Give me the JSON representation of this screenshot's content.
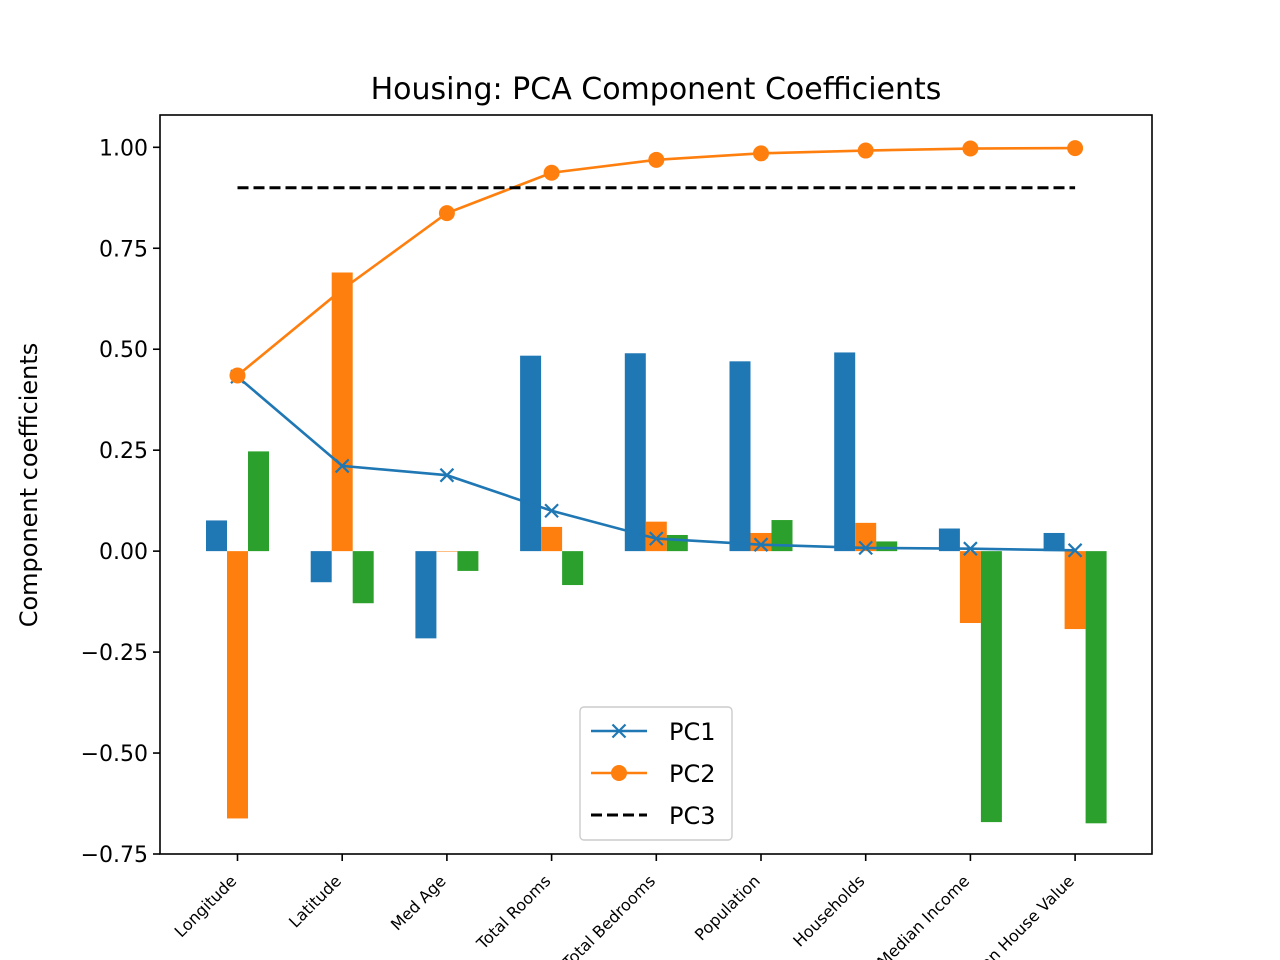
{
  "chart_data": {
    "type": "bar",
    "title": "Housing: PCA Component Coefficients",
    "xlabel": "",
    "ylabel": "Component coefficients",
    "ylim": [
      -0.75,
      1.08
    ],
    "yticks": [
      -0.75,
      -0.5,
      -0.25,
      0.0,
      0.25,
      0.5,
      0.75,
      1.0
    ],
    "ytick_labels": [
      "−0.75",
      "−0.50",
      "−0.25",
      "0.00",
      "0.25",
      "0.50",
      "0.75",
      "1.00"
    ],
    "categories": [
      "Longitude",
      "Latitude",
      "Med Age",
      "Total Rooms",
      "Total Bedrooms",
      "Population",
      "Households",
      "Median Income",
      "Median House Value"
    ],
    "bar_series": [
      {
        "values": [
          0.076,
          -0.077,
          -0.216,
          0.484,
          0.49,
          0.47,
          0.492,
          0.056,
          0.045
        ],
        "color": "#1f77b4"
      },
      {
        "values": [
          -0.662,
          0.69,
          0.0,
          0.06,
          0.073,
          0.045,
          0.07,
          -0.178,
          -0.193
        ],
        "color": "#ff7f0e"
      },
      {
        "values": [
          0.247,
          -0.129,
          -0.049,
          -0.084,
          0.04,
          0.077,
          0.024,
          -0.671,
          -0.674
        ],
        "color": "#2ca02c"
      }
    ],
    "line_series": [
      {
        "name": "PC1",
        "values": [
          0.432,
          0.211,
          0.188,
          0.1,
          0.031,
          0.016,
          0.008,
          0.006,
          0.002
        ],
        "color": "#1f77b4",
        "marker": "x",
        "style": "solid"
      },
      {
        "name": "PC2",
        "values": [
          0.435,
          0.648,
          0.837,
          0.937,
          0.969,
          0.985,
          0.992,
          0.997,
          0.998
        ],
        "color": "#ff7f0e",
        "marker": "o",
        "style": "solid"
      },
      {
        "name": "PC3",
        "values": [
          0.9,
          0.9,
          0.9,
          0.9,
          0.9,
          0.9,
          0.9,
          0.9,
          0.9
        ],
        "color": "#000000",
        "marker": "none",
        "style": "dashed"
      }
    ],
    "legend": {
      "entries": [
        "PC1",
        "PC2",
        "PC3"
      ],
      "placement": "lower-center"
    },
    "grid": false
  }
}
